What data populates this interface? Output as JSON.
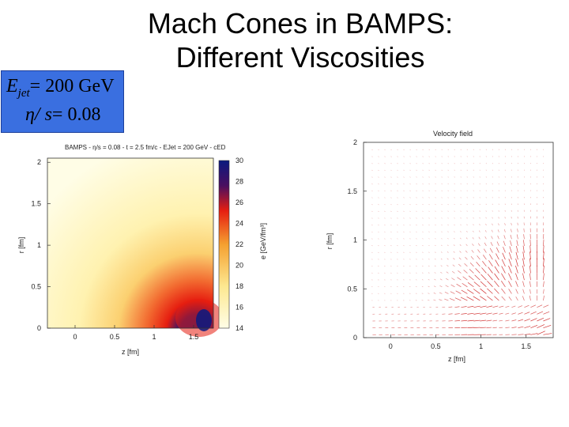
{
  "slide": {
    "title_line1": "Mach Cones in BAMPS:",
    "title_line2": "Different Viscosities"
  },
  "params": {
    "energy_symbol": "E",
    "energy_sub": "jet",
    "energy_value": "= 200  GeV",
    "visc_symbol": "η/ s",
    "visc_value": "= 0.08"
  },
  "chart_data": [
    {
      "type": "heatmap",
      "title": "BAMPS - η/s = 0.08 - t = 2.5 fm/c - EJet = 200 GeV - cED",
      "xlabel": "z [fm]",
      "ylabel": "r [fm]",
      "colorbar_label": "e [GeV/fm³]",
      "x_ticks": [
        "0",
        "0.5",
        "1",
        "1.5"
      ],
      "y_ticks": [
        "2",
        "1.5",
        "1",
        "0.5",
        "0"
      ],
      "colorbar_ticks": [
        "30",
        "28",
        "26",
        "24",
        "22",
        "20",
        "18",
        "16",
        "14"
      ],
      "xlim": [
        -0.35,
        1.75
      ],
      "ylim": [
        0,
        2.05
      ],
      "crange": [
        14,
        30
      ],
      "colors": [
        "#fffde6",
        "#fff1a0",
        "#f5a030",
        "#e61e10",
        "#3a0f6a",
        "#0a1a80"
      ]
    },
    {
      "type": "vector_field",
      "title": "Velocity field",
      "xlabel": "z [fm]",
      "ylabel": "r [fm]",
      "x_ticks": [
        "0",
        "0.5",
        "1",
        "1.5"
      ],
      "y_ticks": [
        "2",
        "1.5",
        "1",
        "0.5",
        "0"
      ],
      "xlim": [
        -0.3,
        1.8
      ],
      "ylim": [
        0,
        2
      ],
      "arrow_color": "#cc1a1a"
    }
  ]
}
